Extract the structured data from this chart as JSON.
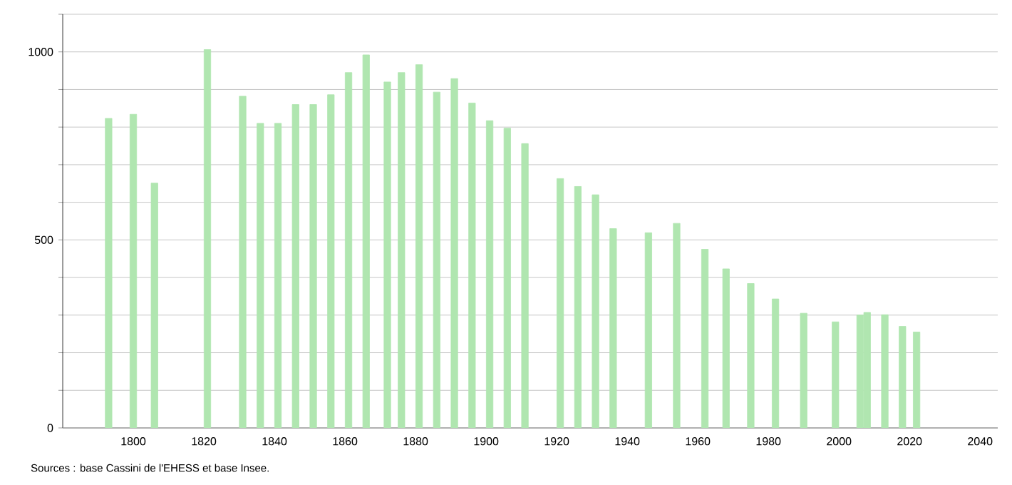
{
  "chart_data": {
    "type": "bar",
    "color": "#b0e6b0",
    "x": [
      1793,
      1800,
      1806,
      1821,
      1831,
      1836,
      1841,
      1846,
      1851,
      1856,
      1861,
      1866,
      1872,
      1876,
      1881,
      1886,
      1891,
      1896,
      1901,
      1906,
      1911,
      1921,
      1926,
      1931,
      1936,
      1946,
      1954,
      1962,
      1968,
      1975,
      1982,
      1990,
      1999,
      2006,
      2008,
      2013,
      2018,
      2022
    ],
    "values": [
      823,
      834,
      651,
      1006,
      882,
      810,
      810,
      860,
      860,
      886,
      945,
      992,
      920,
      945,
      966,
      893,
      929,
      864,
      817,
      797,
      756,
      663,
      642,
      620,
      530,
      519,
      544,
      475,
      423,
      384,
      343,
      305,
      282,
      300,
      307,
      301,
      270,
      255
    ],
    "xlim": [
      1780,
      2045
    ],
    "ylim": [
      0,
      1100
    ],
    "xticks": [
      1800,
      1820,
      1840,
      1860,
      1880,
      1900,
      1920,
      1940,
      1960,
      1980,
      2000,
      2020,
      2040
    ],
    "yticks": [
      0,
      {
        "value": 100,
        "label": null
      },
      {
        "value": 200,
        "label": null
      },
      {
        "value": 300,
        "label": null
      },
      {
        "value": 400,
        "label": null
      },
      500,
      {
        "value": 600,
        "label": null
      },
      {
        "value": 700,
        "label": null
      },
      {
        "value": 800,
        "label": null
      },
      {
        "value": 900,
        "label": null
      },
      1000,
      {
        "value": 1100,
        "label": null
      }
    ],
    "grid": "y",
    "annotations": [
      "Sources : base Cassini de l'EHESS et base Insee."
    ]
  }
}
